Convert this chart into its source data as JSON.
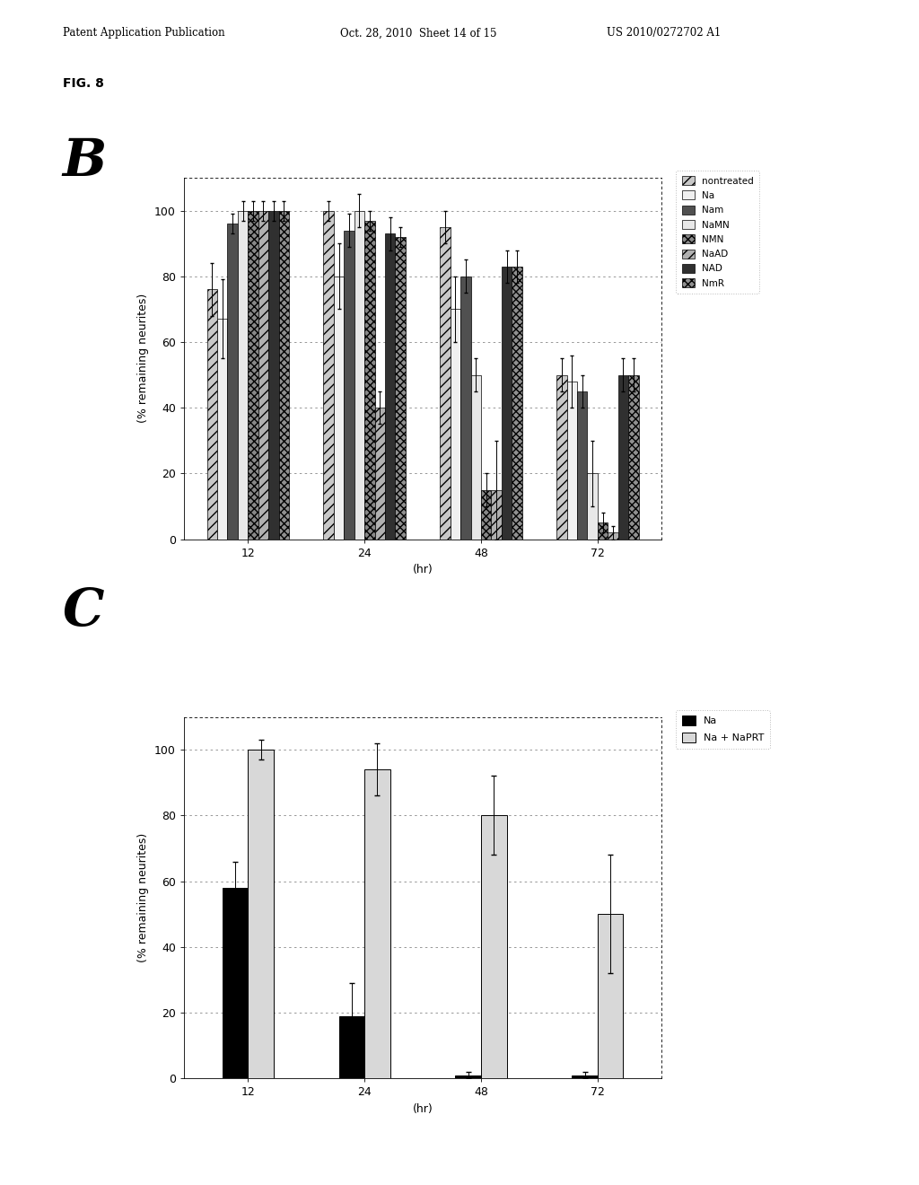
{
  "header_left": "Patent Application Publication",
  "header_mid": "Oct. 28, 2010  Sheet 14 of 15",
  "header_right": "US 2010/0272702 A1",
  "fig_label": "FIG. 8",
  "panel_B_label": "B",
  "panel_C_label": "C",
  "panel_B": {
    "xlabel": "(hr)",
    "ylabel": "(% remaining neurites)",
    "xtick_labels": [
      "12",
      "24",
      "48",
      "72"
    ],
    "ylim": [
      0,
      110
    ],
    "series": [
      {
        "label": "nontreated",
        "color": "#c8c8c8",
        "hatch": "///",
        "values": [
          76,
          100,
          95,
          50
        ],
        "errors": [
          8,
          3,
          5,
          5
        ]
      },
      {
        "label": "Na",
        "color": "#f0f0f0",
        "hatch": "",
        "values": [
          67,
          80,
          70,
          48
        ],
        "errors": [
          12,
          10,
          10,
          8
        ]
      },
      {
        "label": "Nam",
        "color": "#505050",
        "hatch": "",
        "values": [
          96,
          94,
          80,
          45
        ],
        "errors": [
          3,
          5,
          5,
          5
        ]
      },
      {
        "label": "NaMN",
        "color": "#e8e8e8",
        "hatch": "",
        "values": [
          100,
          100,
          50,
          20
        ],
        "errors": [
          3,
          5,
          5,
          10
        ]
      },
      {
        "label": "NMN",
        "color": "#888888",
        "hatch": "xxxx",
        "values": [
          100,
          97,
          15,
          5
        ],
        "errors": [
          3,
          3,
          5,
          3
        ]
      },
      {
        "label": "NaAD",
        "color": "#b0b0b0",
        "hatch": "///",
        "values": [
          100,
          40,
          15,
          2
        ],
        "errors": [
          3,
          5,
          15,
          2
        ]
      },
      {
        "label": "NAD",
        "color": "#303030",
        "hatch": "",
        "values": [
          100,
          93,
          83,
          50
        ],
        "errors": [
          3,
          5,
          5,
          5
        ]
      },
      {
        "label": "NmR",
        "color": "#909090",
        "hatch": "xxxx",
        "values": [
          100,
          92,
          83,
          50
        ],
        "errors": [
          3,
          3,
          5,
          5
        ]
      }
    ]
  },
  "panel_C": {
    "xlabel": "(hr)",
    "ylabel": "(% remaining neurites)",
    "xtick_labels": [
      "12",
      "24",
      "48",
      "72"
    ],
    "ylim": [
      0,
      110
    ],
    "series": [
      {
        "label": "Na",
        "color": "#000000",
        "hatch": "",
        "values": [
          58,
          19,
          1,
          1
        ],
        "errors": [
          8,
          10,
          1,
          1
        ]
      },
      {
        "label": "Na + NaPRT",
        "color": "#d8d8d8",
        "hatch": "",
        "values": [
          100,
          94,
          80,
          50
        ],
        "errors": [
          3,
          8,
          12,
          18
        ]
      }
    ]
  },
  "background_color": "#ffffff",
  "text_color": "#000000"
}
